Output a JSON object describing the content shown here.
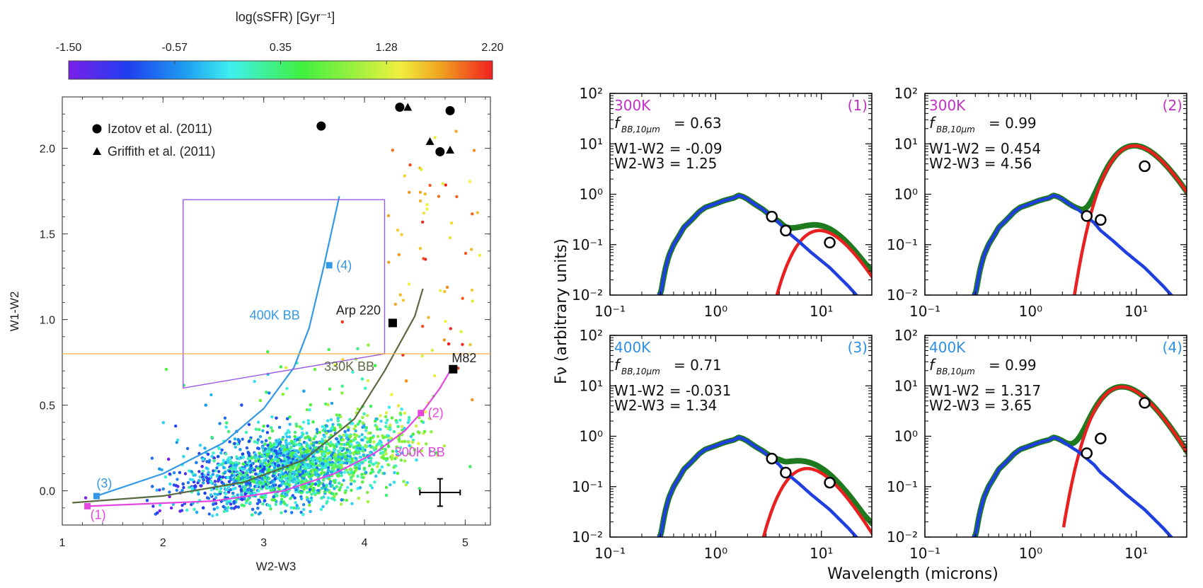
{
  "chart_data": [
    {
      "type": "scatter",
      "xlabel": "W2-W3",
      "ylabel": "W1-W2",
      "xlim": [
        1.0,
        5.25
      ],
      "ylim": [
        -0.2,
        2.3
      ],
      "x_ticks": [
        "1",
        "2",
        "3",
        "4",
        "5"
      ],
      "y_ticks": [
        "0.0",
        "0.5",
        "1.0",
        "1.5",
        "2.0"
      ],
      "grid": false,
      "colorbar": {
        "label": "log(sSFR) [Gyr⁻¹]",
        "ticks": [
          "-1.50",
          "-0.57",
          "0.35",
          "1.28",
          "2.20"
        ],
        "range": [
          -1.5,
          2.2
        ]
      },
      "legend": {
        "placement": "top-left",
        "entries": [
          {
            "marker": "circle",
            "label": "Izotov et al. (2011)"
          },
          {
            "marker": "triangle",
            "label": "Griffith et al. (2011)"
          }
        ]
      },
      "izotov_points": [
        {
          "x": 3.57,
          "y": 2.13
        },
        {
          "x": 4.35,
          "y": 2.24
        },
        {
          "x": 4.75,
          "y": 1.98
        },
        {
          "x": 4.85,
          "y": 2.22
        }
      ],
      "griffith_points": [
        {
          "x": 4.43,
          "y": 2.24
        },
        {
          "x": 4.65,
          "y": 2.04
        },
        {
          "x": 4.85,
          "y": 1.99
        }
      ],
      "galaxies": [
        {
          "label": "Arp 220",
          "x": 4.28,
          "y": 0.98
        },
        {
          "label": "M82",
          "x": 4.88,
          "y": 0.71
        }
      ],
      "selection_box": {
        "color": "#9a5ae6",
        "polygon": [
          [
            2.2,
            1.7
          ],
          [
            4.2,
            1.7
          ],
          [
            4.2,
            0.8
          ],
          [
            2.2,
            0.6
          ]
        ]
      },
      "hline": {
        "y": 0.8,
        "color": "#f0b040"
      },
      "series": [
        {
          "name": "400K BB",
          "color": "#3399e6",
          "x": [
            1.34,
            2.0,
            2.6,
            3.0,
            3.3,
            3.45,
            3.6,
            3.75
          ],
          "y": [
            -0.03,
            0.1,
            0.28,
            0.48,
            0.72,
            0.95,
            1.32,
            1.72
          ]
        },
        {
          "name": "330K BB",
          "color": "#5a6a40",
          "x": [
            1.1,
            2.0,
            2.8,
            3.4,
            3.9,
            4.2,
            4.5,
            4.58
          ],
          "y": [
            -0.07,
            -0.03,
            0.05,
            0.18,
            0.42,
            0.7,
            1.02,
            1.18
          ]
        },
        {
          "name": "300K BB",
          "color": "#e546e0",
          "x": [
            1.25,
            2.5,
            3.2,
            3.7,
            4.1,
            4.4,
            4.6,
            4.75,
            4.88
          ],
          "y": [
            -0.09,
            -0.06,
            0.0,
            0.1,
            0.22,
            0.35,
            0.48,
            0.6,
            0.73
          ]
        }
      ],
      "annotations": [
        {
          "text": "(1)",
          "x": 1.25,
          "y": -0.09,
          "color": "#e546e0"
        },
        {
          "text": "(2)",
          "x": 4.56,
          "y": 0.454,
          "color": "#e546e0"
        },
        {
          "text": "(3)",
          "x": 1.34,
          "y": -0.031,
          "color": "#3399e6"
        },
        {
          "text": "(4)",
          "x": 3.65,
          "y": 1.317,
          "color": "#3399e6"
        }
      ],
      "error_bar": {
        "x": 4.75,
        "y": -0.01,
        "xerr": 0.2,
        "yerr": 0.08
      },
      "scatter_note": "several thousand galaxies coloured by log(sSFR); dense core near W2-W3 3-4, W1-W2 0-0.3"
    },
    {
      "type": "line",
      "xlabel": "Wavelength (microns)",
      "ylabel": "Fν (arbitrary units)",
      "xscale": "log",
      "yscale": "log",
      "xlim": [
        0.1,
        30
      ],
      "ylim": [
        0.01,
        100
      ],
      "x_ticks": [
        "10⁻¹",
        "10⁰",
        "10¹"
      ],
      "y_ticks": [
        "10⁻²",
        "10⁻¹",
        "10⁰",
        "10¹",
        "10²"
      ],
      "series_colors": {
        "stellar": "#1f3fe0",
        "blackbody": "#e82020",
        "total": "#1e7a1e",
        "photometry": "#000000"
      },
      "panels": [
        {
          "id": "(1)",
          "temp": "300K",
          "temp_color": "#c42fc8",
          "fbb_label": "f",
          "fbb_sub": "BB,10μm",
          "fbb": "= 0.63",
          "w1w2": "W1-W2 = -0.09",
          "w2w3": "W2-W3 = 1.25",
          "bb_amp": 0.1,
          "bb_peak": 17,
          "photometry": [
            {
              "x": 3.4,
              "y": 0.36
            },
            {
              "x": 4.6,
              "y": 0.19
            },
            {
              "x": 12,
              "y": 0.11
            }
          ]
        },
        {
          "id": "(2)",
          "temp": "300K",
          "temp_color": "#c42fc8",
          "fbb_label": "f",
          "fbb_sub": "BB,10μm",
          "fbb": "= 0.99",
          "w1w2": "W1-W2 = 0.454",
          "w2w3": "W2-W3 = 4.56",
          "bb_amp": 4.8,
          "bb_peak": 17,
          "photometry": [
            {
              "x": 3.4,
              "y": 0.37
            },
            {
              "x": 4.6,
              "y": 0.31
            },
            {
              "x": 12,
              "y": 3.6
            }
          ]
        },
        {
          "id": "(3)",
          "temp": "400K",
          "temp_color": "#2f8fe6",
          "fbb_label": "f",
          "fbb_sub": "BB,10μm",
          "fbb": "= 0.71",
          "w1w2": "W1-W2 = -0.031",
          "w2w3": "W2-W3 = 1.34",
          "bb_amp": 0.12,
          "bb_peak": 13,
          "photometry": [
            {
              "x": 3.4,
              "y": 0.36
            },
            {
              "x": 4.6,
              "y": 0.19
            },
            {
              "x": 12,
              "y": 0.12
            }
          ]
        },
        {
          "id": "(4)",
          "temp": "400K",
          "temp_color": "#2f8fe6",
          "fbb_label": "f",
          "fbb_sub": "BB,10μm",
          "fbb": "= 0.99",
          "w1w2": "W1-W2 = 1.317",
          "w2w3": "W2-W3 = 3.65",
          "bb_amp": 5.0,
          "bb_peak": 13,
          "photometry": [
            {
              "x": 3.4,
              "y": 0.46
            },
            {
              "x": 4.6,
              "y": 0.9
            },
            {
              "x": 12,
              "y": 4.6
            }
          ]
        }
      ]
    }
  ]
}
